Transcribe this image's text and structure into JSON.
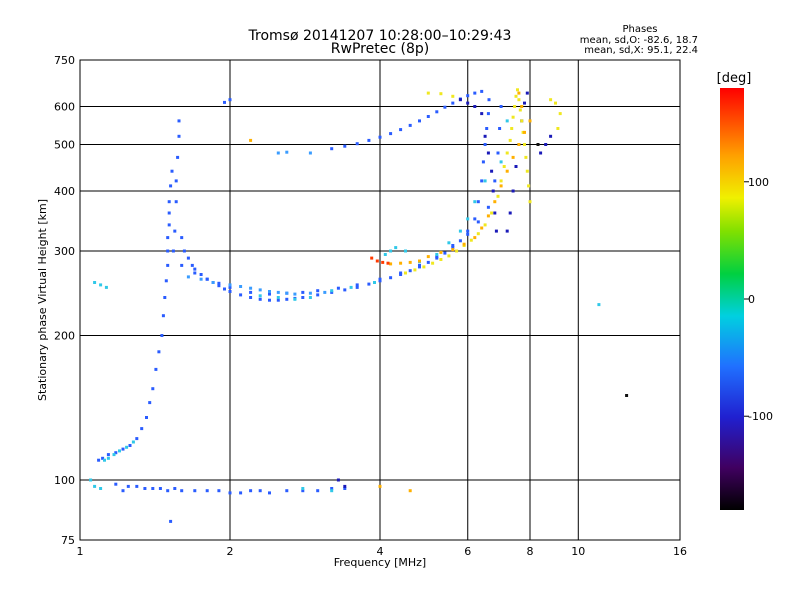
{
  "chart_data": {
    "type": "scatter",
    "title": "Tromsø 20141207 10:28:00–10:29:43",
    "subtitle": "RwPretec (8p)",
    "stats_title": "Phases",
    "stats_lines": [
      "mean, sd,O: -82.6, 18.7",
      "mean, sd,X:  95.1, 22.4"
    ],
    "xlabel": "Frequency [MHz]",
    "ylabel": "Stationary phase Virtual Height [km]",
    "x_scale": "log",
    "y_scale": "log",
    "xlim": [
      1,
      16
    ],
    "ylim": [
      75,
      750
    ],
    "x_ticks": [
      1,
      2,
      4,
      6,
      8,
      10,
      16
    ],
    "x_tick_labels": [
      "1",
      "2",
      "4",
      "6",
      "8",
      "10",
      "16"
    ],
    "y_ticks": [
      75,
      100,
      200,
      300,
      400,
      500,
      600,
      750
    ],
    "y_tick_labels": [
      "75",
      "100",
      "200",
      "300",
      "400",
      "500",
      "600",
      "750"
    ],
    "grid": true,
    "colorbar": {
      "label": "[deg]",
      "range": [
        -180,
        180
      ],
      "ticks": [
        100,
        0,
        -100
      ],
      "tick_labels": [
        "100",
        "0",
        "-100"
      ]
    },
    "series": [
      {
        "color": "#2a5cff",
        "points": [
          [
            1.09,
            110
          ],
          [
            1.11,
            111
          ],
          [
            1.14,
            113
          ],
          [
            1.18,
            114
          ],
          [
            1.22,
            116
          ],
          [
            1.26,
            118
          ],
          [
            1.3,
            122
          ],
          [
            1.33,
            128
          ],
          [
            1.36,
            135
          ],
          [
            1.38,
            145
          ],
          [
            1.4,
            155
          ],
          [
            1.42,
            170
          ],
          [
            1.44,
            185
          ],
          [
            1.46,
            200
          ],
          [
            1.47,
            220
          ],
          [
            1.48,
            240
          ],
          [
            1.49,
            260
          ],
          [
            1.5,
            280
          ],
          [
            1.5,
            300
          ],
          [
            1.5,
            320
          ],
          [
            1.51,
            340
          ],
          [
            1.51,
            360
          ],
          [
            1.51,
            380
          ],
          [
            1.52,
            410
          ],
          [
            1.53,
            440
          ],
          [
            1.54,
            300
          ],
          [
            1.55,
            330
          ],
          [
            1.56,
            380
          ],
          [
            1.56,
            420
          ],
          [
            1.57,
            470
          ],
          [
            1.58,
            520
          ],
          [
            1.58,
            560
          ],
          [
            1.6,
            320
          ],
          [
            1.62,
            300
          ],
          [
            1.65,
            290
          ],
          [
            1.68,
            280
          ],
          [
            1.7,
            275
          ],
          [
            1.75,
            268
          ],
          [
            1.8,
            262
          ],
          [
            1.85,
            258
          ],
          [
            1.9,
            254
          ],
          [
            1.95,
            250
          ],
          [
            2.0,
            247
          ],
          [
            2.1,
            243
          ],
          [
            2.2,
            240
          ],
          [
            2.3,
            238
          ],
          [
            2.4,
            237
          ],
          [
            2.5,
            237
          ],
          [
            2.6,
            238
          ],
          [
            2.7,
            239
          ],
          [
            2.8,
            240
          ],
          [
            3.0,
            243
          ],
          [
            3.2,
            246
          ],
          [
            3.4,
            249
          ],
          [
            3.6,
            252
          ],
          [
            3.8,
            256
          ],
          [
            4.0,
            260
          ],
          [
            4.2,
            264
          ],
          [
            4.4,
            268
          ],
          [
            4.6,
            273
          ],
          [
            4.8,
            278
          ],
          [
            5.0,
            284
          ],
          [
            5.2,
            290
          ],
          [
            5.4,
            297
          ],
          [
            5.6,
            305
          ],
          [
            5.8,
            315
          ],
          [
            6.0,
            330
          ],
          [
            6.2,
            350
          ],
          [
            6.3,
            380
          ],
          [
            6.4,
            420
          ],
          [
            6.45,
            460
          ],
          [
            6.5,
            500
          ],
          [
            6.55,
            540
          ],
          [
            6.6,
            580
          ],
          [
            6.62,
            620
          ],
          [
            1.6,
            280
          ],
          [
            1.7,
            270
          ],
          [
            1.8,
            262
          ],
          [
            1.9,
            257
          ],
          [
            2.0,
            252
          ],
          [
            2.2,
            246
          ],
          [
            2.4,
            244
          ],
          [
            2.6,
            245
          ],
          [
            2.8,
            246
          ],
          [
            3.0,
            248
          ],
          [
            3.3,
            251
          ],
          [
            3.6,
            255
          ],
          [
            4.0,
            262
          ],
          [
            4.4,
            270
          ],
          [
            4.8,
            280
          ],
          [
            5.2,
            292
          ],
          [
            5.6,
            308
          ],
          [
            6.0,
            325
          ],
          [
            6.3,
            345
          ],
          [
            6.6,
            370
          ],
          [
            6.8,
            420
          ],
          [
            6.9,
            480
          ],
          [
            6.95,
            540
          ],
          [
            7.0,
            600
          ],
          [
            3.2,
            490
          ],
          [
            3.4,
            496
          ],
          [
            3.6,
            502
          ],
          [
            3.8,
            510
          ],
          [
            4.0,
            518
          ],
          [
            4.2,
            527
          ],
          [
            4.4,
            537
          ],
          [
            4.6,
            548
          ],
          [
            4.8,
            560
          ],
          [
            5.0,
            572
          ],
          [
            5.2,
            585
          ],
          [
            5.4,
            598
          ],
          [
            5.6,
            610
          ],
          [
            5.8,
            622
          ],
          [
            6.0,
            632
          ],
          [
            6.2,
            640
          ],
          [
            6.4,
            645
          ],
          [
            1.3,
            97
          ],
          [
            1.35,
            96
          ],
          [
            1.4,
            96
          ],
          [
            1.45,
            96
          ],
          [
            1.5,
            95
          ],
          [
            1.55,
            96
          ],
          [
            1.6,
            95
          ],
          [
            1.7,
            95
          ],
          [
            1.8,
            95
          ],
          [
            1.9,
            95
          ],
          [
            2.0,
            94
          ],
          [
            2.1,
            94
          ],
          [
            2.2,
            95
          ],
          [
            2.3,
            95
          ],
          [
            2.4,
            94
          ],
          [
            2.6,
            95
          ],
          [
            2.8,
            95
          ],
          [
            3.0,
            95
          ],
          [
            3.2,
            96
          ],
          [
            3.4,
            96
          ],
          [
            1.18,
            98
          ],
          [
            1.22,
            95
          ],
          [
            1.25,
            97
          ],
          [
            1.95,
            612
          ],
          [
            2.0,
            620
          ],
          [
            1.52,
            82
          ]
        ]
      },
      {
        "color": "#3a9cff",
        "points": [
          [
            1.65,
            265
          ],
          [
            1.75,
            262
          ],
          [
            1.85,
            258
          ],
          [
            2.0,
            255
          ],
          [
            2.1,
            253
          ],
          [
            2.2,
            251
          ],
          [
            2.3,
            249
          ],
          [
            2.4,
            247
          ],
          [
            2.5,
            246
          ],
          [
            2.6,
            245
          ],
          [
            2.7,
            244
          ],
          [
            2.9,
            245
          ],
          [
            3.1,
            246
          ],
          [
            2.5,
            480
          ],
          [
            2.6,
            482
          ],
          [
            2.9,
            480
          ]
        ]
      },
      {
        "color": "#30c8e8",
        "points": [
          [
            1.05,
            100
          ],
          [
            1.07,
            97
          ],
          [
            1.1,
            96
          ],
          [
            1.12,
            110
          ],
          [
            1.14,
            111
          ],
          [
            1.17,
            113
          ],
          [
            1.2,
            115
          ],
          [
            1.24,
            117
          ],
          [
            1.28,
            120
          ],
          [
            1.07,
            258
          ],
          [
            1.1,
            255
          ],
          [
            1.13,
            252
          ],
          [
            2.3,
            242
          ],
          [
            2.5,
            240
          ],
          [
            2.7,
            238
          ],
          [
            2.9,
            240
          ],
          [
            3.2,
            248
          ],
          [
            3.5,
            252
          ],
          [
            3.9,
            258
          ],
          [
            4.1,
            295
          ],
          [
            4.2,
            300
          ],
          [
            4.3,
            305
          ],
          [
            4.5,
            300
          ],
          [
            4.8,
            285
          ],
          [
            5.2,
            295
          ],
          [
            5.5,
            312
          ],
          [
            5.8,
            330
          ],
          [
            6.0,
            350
          ],
          [
            6.2,
            380
          ],
          [
            6.5,
            420
          ],
          [
            7.2,
            560
          ],
          [
            7.0,
            460
          ],
          [
            2.8,
            96
          ],
          [
            3.2,
            95
          ],
          [
            11.0,
            232
          ]
        ]
      },
      {
        "color": "#1a1ab8",
        "points": [
          [
            5.8,
            620
          ],
          [
            6.0,
            610
          ],
          [
            6.2,
            600
          ],
          [
            6.4,
            580
          ],
          [
            6.5,
            520
          ],
          [
            6.6,
            480
          ],
          [
            6.7,
            440
          ],
          [
            6.75,
            400
          ],
          [
            6.8,
            360
          ],
          [
            6.85,
            330
          ],
          [
            7.2,
            330
          ],
          [
            7.3,
            360
          ],
          [
            7.4,
            400
          ],
          [
            7.5,
            450
          ],
          [
            7.6,
            500
          ],
          [
            7.7,
            560
          ],
          [
            7.8,
            610
          ],
          [
            7.9,
            640
          ],
          [
            8.4,
            480
          ],
          [
            8.6,
            500
          ],
          [
            8.8,
            520
          ],
          [
            3.3,
            100
          ],
          [
            3.4,
            97
          ]
        ]
      },
      {
        "color": "#f0e820",
        "points": [
          [
            4.5,
            270
          ],
          [
            4.7,
            274
          ],
          [
            4.9,
            278
          ],
          [
            5.1,
            283
          ],
          [
            5.3,
            288
          ],
          [
            5.5,
            293
          ],
          [
            5.7,
            300
          ],
          [
            5.9,
            308
          ],
          [
            6.1,
            316
          ],
          [
            6.3,
            326
          ],
          [
            6.5,
            340
          ],
          [
            6.7,
            360
          ],
          [
            6.9,
            390
          ],
          [
            7.0,
            420
          ],
          [
            7.1,
            450
          ],
          [
            7.2,
            480
          ],
          [
            7.3,
            510
          ],
          [
            7.35,
            540
          ],
          [
            7.4,
            570
          ],
          [
            7.45,
            600
          ],
          [
            7.5,
            630
          ],
          [
            7.55,
            650
          ],
          [
            7.6,
            620
          ],
          [
            7.65,
            590
          ],
          [
            7.7,
            560
          ],
          [
            7.75,
            530
          ],
          [
            7.8,
            500
          ],
          [
            7.85,
            470
          ],
          [
            7.9,
            440
          ],
          [
            7.95,
            410
          ],
          [
            8.0,
            380
          ],
          [
            5.0,
            640
          ],
          [
            5.3,
            638
          ],
          [
            5.6,
            630
          ],
          [
            9.0,
            610
          ],
          [
            9.2,
            580
          ],
          [
            9.1,
            540
          ],
          [
            8.8,
            620
          ]
        ]
      },
      {
        "color": "#ffb000",
        "points": [
          [
            4.2,
            282
          ],
          [
            4.4,
            283
          ],
          [
            4.6,
            284
          ],
          [
            4.8,
            286
          ],
          [
            5.0,
            292
          ],
          [
            5.3,
            298
          ],
          [
            5.6,
            302
          ],
          [
            5.9,
            310
          ],
          [
            6.2,
            320
          ],
          [
            6.4,
            335
          ],
          [
            6.6,
            355
          ],
          [
            6.8,
            380
          ],
          [
            7.0,
            410
          ],
          [
            7.2,
            440
          ],
          [
            7.4,
            470
          ],
          [
            7.6,
            500
          ],
          [
            7.8,
            530
          ],
          [
            8.0,
            560
          ],
          [
            7.7,
            600
          ],
          [
            7.6,
            640
          ],
          [
            4.6,
            95
          ],
          [
            4.0,
            97
          ],
          [
            2.2,
            510
          ]
        ]
      },
      {
        "color": "#ff3a00",
        "points": [
          [
            3.85,
            290
          ],
          [
            3.95,
            286
          ],
          [
            4.05,
            284
          ],
          [
            4.15,
            283
          ]
        ]
      },
      {
        "color": "#101010",
        "points": [
          [
            12.5,
            150
          ],
          [
            8.3,
            500
          ]
        ]
      }
    ]
  }
}
